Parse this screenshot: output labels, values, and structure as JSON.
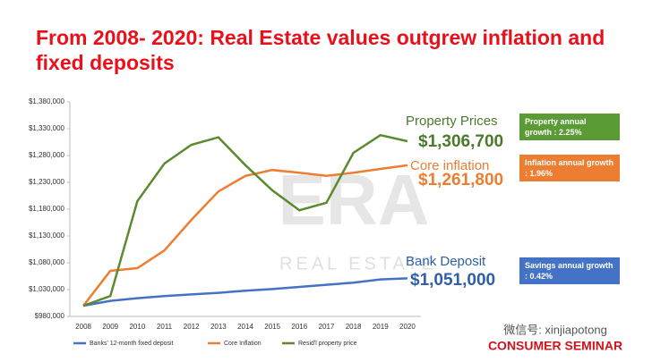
{
  "chart_data": {
    "type": "line",
    "title": "From 2008- 2020: Real Estate values outgrew inflation and fixed deposits",
    "categories": [
      "2008",
      "2009",
      "2010",
      "2011",
      "2012",
      "2013",
      "2014",
      "2015",
      "2016",
      "2017",
      "2018",
      "2019",
      "2020"
    ],
    "series": [
      {
        "name": "Banks' 12-month fixed deposit",
        "color": "#4472c4",
        "values": [
          1000000,
          1009000,
          1014000,
          1018000,
          1021000,
          1024000,
          1028000,
          1031000,
          1035000,
          1039000,
          1043000,
          1049000,
          1051000
        ]
      },
      {
        "name": "Core Inflation",
        "color": "#ed7d31",
        "values": [
          1000000,
          1065000,
          1070000,
          1103000,
          1160000,
          1213000,
          1242000,
          1253000,
          1248000,
          1242000,
          1248000,
          1255000,
          1261800
        ]
      },
      {
        "name": "Resid'l property price",
        "color": "#5b8a2f",
        "values": [
          1000000,
          1018000,
          1195000,
          1265000,
          1300000,
          1314000,
          1262000,
          1215000,
          1178000,
          1192000,
          1285000,
          1318000,
          1306700
        ]
      }
    ],
    "ylim": [
      980000,
      1380000
    ],
    "yticks": [
      {
        "value": 980000,
        "label": "$980,000"
      },
      {
        "value": 1030000,
        "label": "$1,030,000"
      },
      {
        "value": 1080000,
        "label": "$1,080,000"
      },
      {
        "value": 1130000,
        "label": "$1,130,000"
      },
      {
        "value": 1180000,
        "label": "$1,180,000"
      },
      {
        "value": 1230000,
        "label": "$1,230,000"
      },
      {
        "value": 1280000,
        "label": "$1,280,000"
      },
      {
        "value": 1330000,
        "label": "$1,330,000"
      },
      {
        "value": 1380000,
        "label": "$1,380,000"
      }
    ],
    "grid": false,
    "legend": "bottom",
    "annotations": {
      "property_label": "Property Prices",
      "property_value": "$1,306,700",
      "inflation_label": "Core inflation",
      "inflation_value": "$1,261,800",
      "deposit_label": "Bank Deposit",
      "deposit_value": "$1,051,000",
      "property_box": "Property annual growth : 2.25%",
      "inflation_box": "Inflation annual growth : 1.96%",
      "savings_box": "Savings annual growth : 0.42%"
    },
    "watermark": {
      "logo": "ERA",
      "tagline": "REAL ESTATE",
      "wechat": "微信号: xinjiapotong",
      "brand": "CONSUMER SEMINAR"
    }
  }
}
